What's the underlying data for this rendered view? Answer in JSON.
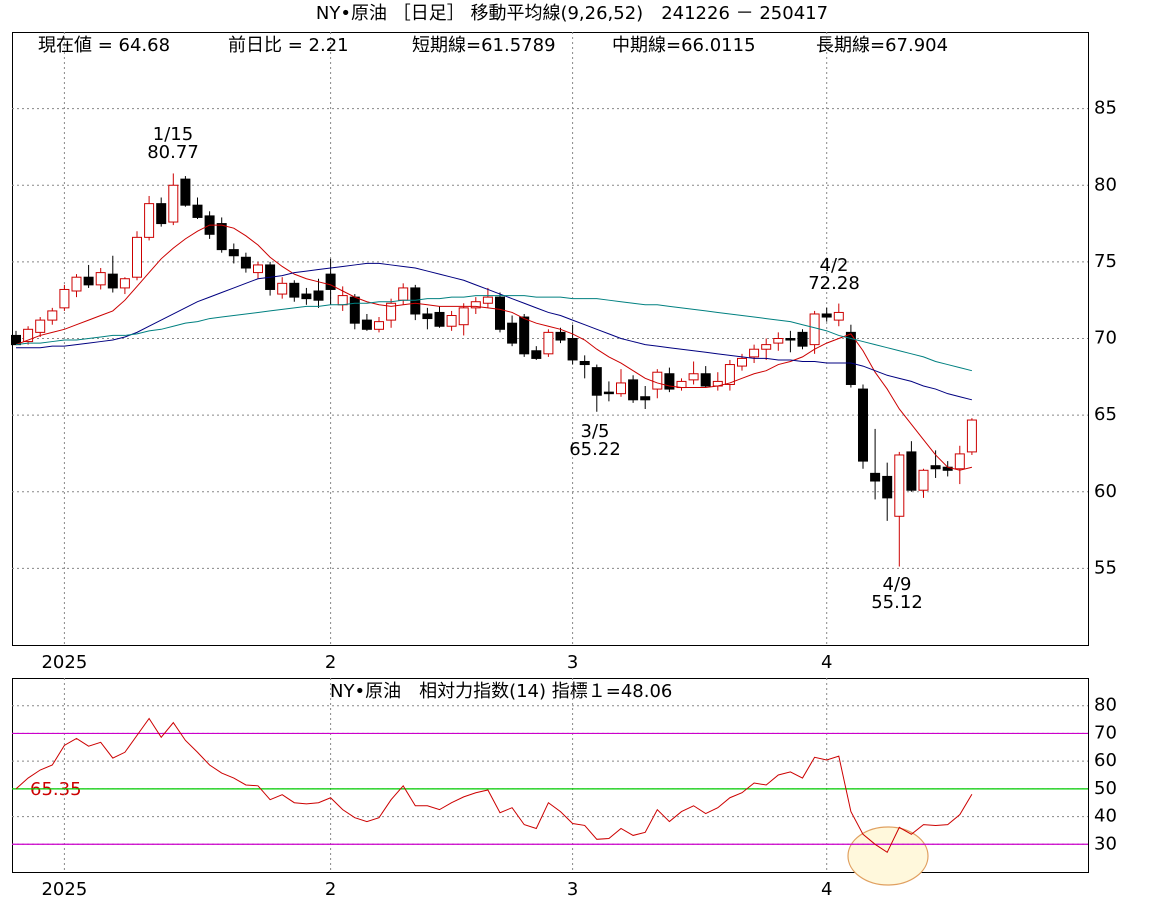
{
  "chart_data": [
    {
      "type": "candlestick",
      "title": "NY•原油 ［日足］ 移動平均線(9,26,52)　241226 － 250417",
      "info": [
        "現在値 = 64.68",
        "前日比 = 2.21",
        "短期線=61.5789",
        "中期線=66.0115",
        "長期線=67.904"
      ],
      "categories": [
        null,
        null,
        null,
        null,
        "2025",
        null,
        null,
        null,
        null,
        null,
        null,
        null,
        null,
        null,
        null,
        null,
        null,
        null,
        null,
        null,
        null,
        null,
        null,
        null,
        null,
        null,
        "2",
        null,
        null,
        null,
        null,
        null,
        null,
        null,
        null,
        null,
        null,
        null,
        null,
        null,
        null,
        null,
        null,
        null,
        null,
        null,
        "3",
        null,
        null,
        null,
        null,
        null,
        null,
        null,
        null,
        null,
        null,
        null,
        null,
        null,
        null,
        null,
        null,
        null,
        null,
        null,
        null,
        "4",
        null,
        null,
        null,
        null,
        null,
        null,
        null,
        null,
        null,
        null,
        null,
        null
      ],
      "open": [
        70.2,
        69.8,
        70.4,
        71.2,
        72.0,
        73.1,
        74.0,
        73.5,
        74.2,
        73.3,
        74.0,
        76.6,
        78.8,
        77.6,
        80.4,
        78.7,
        78.0,
        77.5,
        75.8,
        75.3,
        74.3,
        74.8,
        72.9,
        73.6,
        72.9,
        73.1,
        74.2,
        72.2,
        72.7,
        71.2,
        70.6,
        71.2,
        72.5,
        73.3,
        71.6,
        71.7,
        70.8,
        70.9,
        72.0,
        72.3,
        72.7,
        71.0,
        71.4,
        69.2,
        69.0,
        70.4,
        70.0,
        68.5,
        68.1,
        66.5,
        66.4,
        67.3,
        66.2,
        66.7,
        67.7,
        66.8,
        67.3,
        67.7,
        66.9,
        67.0,
        68.2,
        68.8,
        69.3,
        69.7,
        70.0,
        70.4,
        69.6,
        71.6,
        71.2,
        70.4,
        66.7,
        61.2,
        61.0,
        58.4,
        62.6,
        60.1,
        61.7,
        61.6,
        61.5,
        62.6
      ],
      "high": [
        70.5,
        70.8,
        71.4,
        72.0,
        73.5,
        74.2,
        74.8,
        74.6,
        75.4,
        74.0,
        77.0,
        79.3,
        79.2,
        80.77,
        80.6,
        79.2,
        78.3,
        77.9,
        76.2,
        75.6,
        75.0,
        75.0,
        74.0,
        73.8,
        73.3,
        73.9,
        75.2,
        73.4,
        72.9,
        71.6,
        71.4,
        72.6,
        73.6,
        73.5,
        72.0,
        72.1,
        71.8,
        72.3,
        72.7,
        73.3,
        73.0,
        71.5,
        71.6,
        69.5,
        70.6,
        70.7,
        70.9,
        68.9,
        68.3,
        67.2,
        68.0,
        67.6,
        66.9,
        68.0,
        68.1,
        67.4,
        68.5,
        68.2,
        67.8,
        68.6,
        69.0,
        69.6,
        70.0,
        70.4,
        70.5,
        70.6,
        71.8,
        72.0,
        72.28,
        70.9,
        67.0,
        64.1,
        61.9,
        62.6,
        63.3,
        61.5,
        62.7,
        62.0,
        63.0,
        64.8
      ],
      "low": [
        69.6,
        69.6,
        70.1,
        70.9,
        71.8,
        72.7,
        73.3,
        73.2,
        73.0,
        72.9,
        73.8,
        76.4,
        77.3,
        77.4,
        78.6,
        77.8,
        76.5,
        75.6,
        74.9,
        74.3,
        73.9,
        72.8,
        72.6,
        72.4,
        72.2,
        72.0,
        72.2,
        71.8,
        70.6,
        70.5,
        70.4,
        70.7,
        72.2,
        71.2,
        70.6,
        70.7,
        70.5,
        70.2,
        71.6,
        72.0,
        70.4,
        69.5,
        68.8,
        68.6,
        68.8,
        69.7,
        68.3,
        67.4,
        65.22,
        65.9,
        66.2,
        65.8,
        65.4,
        66.1,
        66.5,
        66.6,
        67.0,
        66.8,
        66.6,
        66.6,
        67.9,
        68.4,
        68.6,
        69.2,
        69.1,
        69.3,
        69.0,
        71.1,
        70.8,
        66.8,
        61.5,
        59.5,
        58.1,
        55.12,
        60.0,
        59.6,
        60.9,
        61.0,
        60.5,
        62.4
      ],
      "close": [
        69.6,
        70.6,
        71.2,
        71.8,
        73.2,
        74.0,
        73.5,
        74.3,
        73.3,
        73.9,
        76.6,
        78.8,
        77.5,
        80.0,
        78.7,
        77.9,
        76.8,
        75.8,
        75.4,
        74.6,
        74.8,
        73.2,
        73.6,
        72.7,
        72.6,
        72.5,
        73.2,
        72.8,
        71.0,
        70.6,
        71.1,
        72.3,
        73.3,
        71.6,
        71.3,
        70.8,
        71.5,
        72.0,
        72.4,
        72.7,
        70.6,
        69.7,
        69.0,
        68.7,
        70.4,
        69.9,
        68.6,
        68.3,
        66.3,
        66.4,
        67.1,
        66.0,
        66.0,
        67.8,
        66.7,
        67.2,
        67.7,
        66.9,
        67.2,
        68.3,
        68.7,
        69.3,
        69.6,
        70.0,
        69.9,
        69.5,
        71.6,
        71.4,
        71.7,
        67.0,
        62.0,
        60.7,
        59.6,
        62.4,
        60.1,
        61.4,
        61.5,
        61.4,
        62.47,
        64.68
      ],
      "up_color": "#cc0000",
      "down_color": "#000000",
      "series": [
        {
          "color": "#cc0000",
          "values": [
            69.6,
            69.9,
            70.2,
            70.4,
            70.6,
            70.9,
            71.2,
            71.5,
            71.8,
            72.5,
            73.4,
            74.3,
            75.2,
            75.9,
            76.5,
            77.0,
            77.4,
            77.4,
            77.2,
            76.7,
            76.1,
            75.3,
            74.7,
            74.2,
            73.9,
            73.7,
            73.5,
            73.1,
            72.7,
            72.4,
            72.2,
            72.1,
            72.2,
            72.3,
            72.2,
            72.1,
            72.1,
            72.1,
            72.1,
            72.0,
            71.9,
            71.7,
            71.3,
            71.0,
            70.8,
            70.6,
            70.3,
            69.9,
            69.3,
            68.8,
            68.4,
            67.9,
            67.4,
            67.1,
            66.9,
            66.8,
            66.8,
            66.8,
            66.9,
            67.1,
            67.4,
            67.7,
            67.9,
            68.3,
            68.5,
            68.8,
            69.3,
            69.7,
            70.0,
            70.3,
            69.2,
            67.8,
            66.7,
            65.4,
            64.4,
            63.4,
            62.4,
            61.6,
            61.4,
            61.6
          ]
        },
        {
          "color": "#000080",
          "values": [
            69.4,
            69.4,
            69.4,
            69.5,
            69.5,
            69.6,
            69.7,
            69.8,
            69.9,
            70.1,
            70.4,
            70.8,
            71.2,
            71.6,
            72.0,
            72.4,
            72.7,
            73.0,
            73.3,
            73.6,
            73.9,
            74.0,
            74.1,
            74.3,
            74.4,
            74.5,
            74.6,
            74.7,
            74.8,
            74.9,
            74.9,
            74.8,
            74.7,
            74.6,
            74.4,
            74.2,
            74.0,
            73.8,
            73.5,
            73.2,
            72.9,
            72.6,
            72.3,
            72.0,
            71.7,
            71.5,
            71.2,
            70.9,
            70.6,
            70.3,
            70.0,
            69.8,
            69.6,
            69.5,
            69.4,
            69.3,
            69.2,
            69.1,
            69.0,
            68.9,
            68.8,
            68.7,
            68.7,
            68.6,
            68.6,
            68.5,
            68.5,
            68.4,
            68.4,
            68.4,
            68.2,
            67.9,
            67.6,
            67.4,
            67.2,
            66.9,
            66.7,
            66.4,
            66.2,
            66.0
          ]
        },
        {
          "color": "#008080",
          "values": [
            69.6,
            69.7,
            69.7,
            69.8,
            69.9,
            69.9,
            70.0,
            70.1,
            70.2,
            70.2,
            70.3,
            70.5,
            70.6,
            70.8,
            71.0,
            71.1,
            71.3,
            71.4,
            71.5,
            71.6,
            71.7,
            71.8,
            71.9,
            72.0,
            72.1,
            72.1,
            72.2,
            72.2,
            72.3,
            72.3,
            72.4,
            72.4,
            72.5,
            72.5,
            72.6,
            72.6,
            72.7,
            72.7,
            72.8,
            72.8,
            72.8,
            72.8,
            72.8,
            72.7,
            72.7,
            72.7,
            72.6,
            72.6,
            72.6,
            72.5,
            72.4,
            72.3,
            72.2,
            72.2,
            72.1,
            72.0,
            71.9,
            71.8,
            71.7,
            71.6,
            71.5,
            71.4,
            71.3,
            71.2,
            71.1,
            70.9,
            70.7,
            70.5,
            70.2,
            70.0,
            69.8,
            69.6,
            69.4,
            69.2,
            69.0,
            68.8,
            68.5,
            68.3,
            68.1,
            67.9
          ]
        }
      ],
      "annotations": [
        {
          "date": "1/15",
          "value": 80.77
        },
        {
          "date": "3/5",
          "value": 65.22
        },
        {
          "date": "4/2",
          "value": 72.28
        },
        {
          "date": "4/9",
          "value": 55.12
        }
      ],
      "ylim": [
        50,
        90
      ],
      "yticks": [
        55,
        60,
        65,
        70,
        75,
        80,
        85
      ],
      "grid": true
    },
    {
      "type": "line",
      "title": "NY•原油　相対力指数(14) 指標１=48.06",
      "annotation": "65.35",
      "series": [
        {
          "color": "#cc0000",
          "values": [
            50.0,
            53.9,
            56.8,
            58.6,
            65.7,
            68.2,
            65.4,
            66.8,
            61.1,
            63.2,
            69.3,
            75.4,
            68.6,
            73.9,
            67.5,
            63.2,
            58.6,
            55.7,
            53.9,
            51.4,
            51.1,
            46.1,
            47.9,
            45.0,
            44.6,
            45.0,
            46.8,
            42.5,
            39.6,
            38.2,
            39.6,
            46.1,
            51.1,
            43.9,
            43.9,
            42.5,
            45.0,
            47.1,
            48.6,
            49.6,
            41.4,
            43.2,
            37.1,
            35.7,
            45.0,
            41.8,
            37.5,
            36.8,
            31.8,
            32.1,
            35.7,
            33.2,
            34.3,
            42.5,
            38.2,
            41.8,
            43.9,
            41.1,
            43.2,
            46.8,
            48.6,
            52.1,
            51.4,
            55.0,
            56.1,
            53.9,
            61.4,
            60.4,
            61.8,
            41.8,
            33.6,
            30.0,
            27.1,
            36.1,
            33.6,
            37.1,
            36.8,
            37.1,
            40.7,
            48.06
          ]
        }
      ],
      "hlines": [
        {
          "value": 70,
          "color": "#cc00cc"
        },
        {
          "value": 50,
          "color": "#00cc00"
        },
        {
          "value": 30,
          "color": "#cc00cc"
        }
      ],
      "ylim": [
        20,
        90
      ],
      "yticks": [
        30,
        40,
        50,
        60,
        70,
        80
      ],
      "grid": true
    }
  ]
}
